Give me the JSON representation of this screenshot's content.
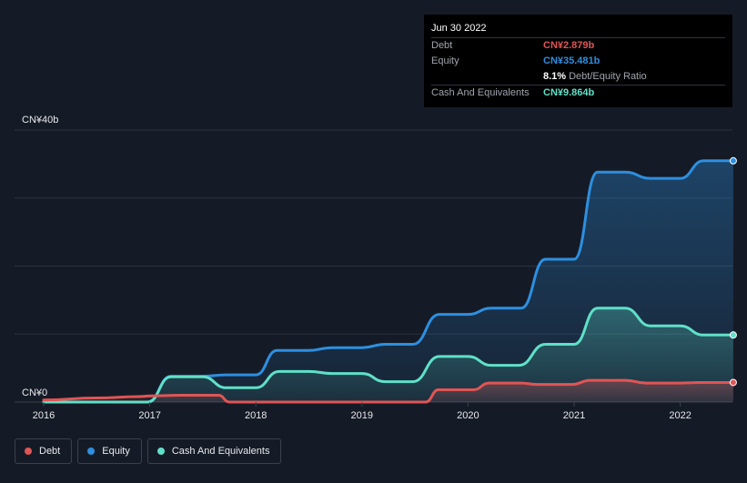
{
  "chart_data": {
    "type": "area",
    "title": "",
    "xlabel": "",
    "ylabel": "",
    "ylim": [
      0,
      40
    ],
    "y_unit": "CN¥b",
    "y_tick_labels": {
      "top": "CN¥40b",
      "bottom": "CN¥0"
    },
    "x_tick_labels": [
      "2016",
      "2017",
      "2018",
      "2019",
      "2020",
      "2021",
      "2022"
    ],
    "grid": true,
    "legend_position": "bottom-left",
    "series": [
      {
        "name": "Debt",
        "color": "#e05555",
        "points": [
          [
            2016.0,
            0.3
          ],
          [
            2016.5,
            0.6
          ],
          [
            2016.9,
            0.8
          ],
          [
            2017.0,
            0.9
          ],
          [
            2017.3,
            1.0
          ],
          [
            2017.65,
            1.0
          ],
          [
            2017.75,
            0.0
          ],
          [
            2019.5,
            0.0
          ],
          [
            2019.6,
            0.0
          ],
          [
            2019.72,
            1.8
          ],
          [
            2020.05,
            1.8
          ],
          [
            2020.2,
            2.8
          ],
          [
            2020.5,
            2.8
          ],
          [
            2020.65,
            2.6
          ],
          [
            2020.98,
            2.6
          ],
          [
            2021.15,
            3.2
          ],
          [
            2021.48,
            3.2
          ],
          [
            2021.68,
            2.8
          ],
          [
            2021.98,
            2.8
          ],
          [
            2022.2,
            2.879
          ],
          [
            2022.5,
            2.879
          ]
        ]
      },
      {
        "name": "Equity",
        "color": "#2d8fe0",
        "points": [
          [
            2016.0,
            0.0
          ],
          [
            2016.98,
            0.0
          ],
          [
            2017.2,
            3.8
          ],
          [
            2017.5,
            3.8
          ],
          [
            2017.72,
            4.0
          ],
          [
            2018.0,
            4.0
          ],
          [
            2018.2,
            7.6
          ],
          [
            2018.5,
            7.6
          ],
          [
            2018.72,
            8.0
          ],
          [
            2019.0,
            8.0
          ],
          [
            2019.22,
            8.5
          ],
          [
            2019.48,
            8.5
          ],
          [
            2019.73,
            12.9
          ],
          [
            2020.0,
            12.9
          ],
          [
            2020.22,
            13.8
          ],
          [
            2020.5,
            13.8
          ],
          [
            2020.73,
            21.0
          ],
          [
            2021.0,
            21.0
          ],
          [
            2021.22,
            33.8
          ],
          [
            2021.48,
            33.8
          ],
          [
            2021.72,
            32.9
          ],
          [
            2022.0,
            32.9
          ],
          [
            2022.22,
            35.481
          ],
          [
            2022.5,
            35.481
          ]
        ]
      },
      {
        "name": "Cash And Equivalents",
        "color": "#5fe0c8",
        "points": [
          [
            2016.0,
            0.0
          ],
          [
            2016.98,
            0.0
          ],
          [
            2017.2,
            3.7
          ],
          [
            2017.5,
            3.7
          ],
          [
            2017.72,
            2.1
          ],
          [
            2018.0,
            2.1
          ],
          [
            2018.22,
            4.5
          ],
          [
            2018.5,
            4.5
          ],
          [
            2018.72,
            4.2
          ],
          [
            2019.0,
            4.2
          ],
          [
            2019.22,
            3.0
          ],
          [
            2019.48,
            3.0
          ],
          [
            2019.73,
            6.7
          ],
          [
            2020.0,
            6.7
          ],
          [
            2020.22,
            5.4
          ],
          [
            2020.48,
            5.4
          ],
          [
            2020.73,
            8.5
          ],
          [
            2021.0,
            8.5
          ],
          [
            2021.22,
            13.8
          ],
          [
            2021.48,
            13.8
          ],
          [
            2021.72,
            11.2
          ],
          [
            2022.0,
            11.2
          ],
          [
            2022.22,
            9.864
          ],
          [
            2022.5,
            9.864
          ]
        ]
      }
    ]
  },
  "tooltip": {
    "date": "Jun 30 2022",
    "rows": {
      "debt_label": "Debt",
      "debt_value": "CN¥2.879b",
      "equity_label": "Equity",
      "equity_value": "CN¥35.481b",
      "ratio_value": "8.1%",
      "ratio_label": "Debt/Equity Ratio",
      "cash_label": "Cash And Equivalents",
      "cash_value": "CN¥9.864b"
    }
  },
  "legend": {
    "debt": "Debt",
    "equity": "Equity",
    "cash": "Cash And Equivalents"
  },
  "colors": {
    "background": "#151b26",
    "grid": "#2c323e",
    "axis_text": "#e6e8ec"
  }
}
